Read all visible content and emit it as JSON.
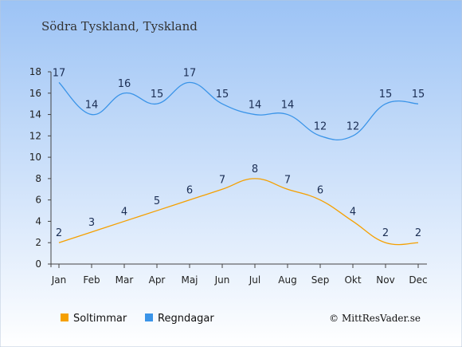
{
  "chart_data": {
    "type": "line",
    "title": "Södra Tyskland, Tyskland",
    "categories": [
      "Jan",
      "Feb",
      "Mar",
      "Apr",
      "Maj",
      "Jun",
      "Jul",
      "Aug",
      "Sep",
      "Okt",
      "Nov",
      "Dec"
    ],
    "series": [
      {
        "name": "Soltimmar",
        "color": "#f5a000",
        "values": [
          2,
          3,
          4,
          5,
          6,
          7,
          8,
          7,
          6,
          4,
          2,
          2
        ]
      },
      {
        "name": "Regndagar",
        "color": "#3a94e8",
        "values": [
          17,
          14,
          16,
          15,
          17,
          15,
          14,
          14,
          12,
          12,
          15,
          15
        ]
      }
    ],
    "yticks": [
      0,
      2,
      4,
      6,
      8,
      10,
      12,
      14,
      16,
      18
    ],
    "ylim": [
      0,
      18
    ],
    "grid": false,
    "legend": "bottom-left"
  },
  "credit": "© MittResVader.se",
  "colors": {
    "bg_top": "#9cc3f5",
    "bg_bottom": "#ffffff"
  }
}
